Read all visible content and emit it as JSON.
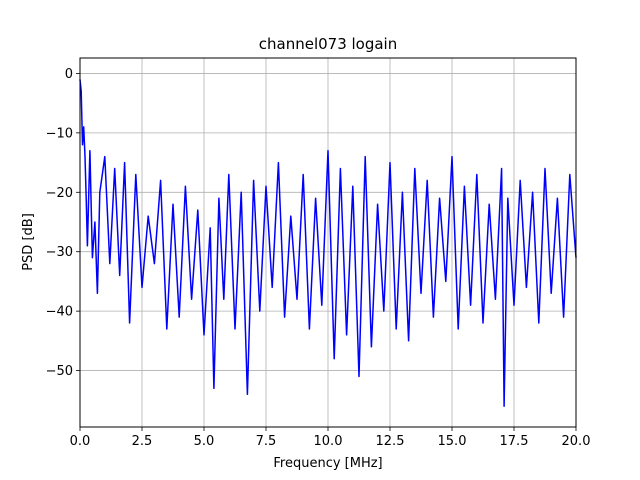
{
  "chart_data": {
    "type": "line",
    "title": "channel073 logain",
    "xlabel": "Frequency [MHz]",
    "ylabel": "PSD [dB]",
    "xlim": [
      0,
      20
    ],
    "ylim": [
      -59.5,
      2.6
    ],
    "grid": true,
    "x_ticks": [
      0,
      2.5,
      5,
      7.5,
      10,
      12.5,
      15,
      17.5,
      20
    ],
    "x_tick_labels": [
      "0.0",
      "2.5",
      "5.0",
      "7.5",
      "10.0",
      "12.5",
      "15.0",
      "17.5",
      "20.0"
    ],
    "y_ticks": [
      0,
      -10,
      -20,
      -30,
      -40,
      -50
    ],
    "y_tick_labels": [
      "0",
      "−10",
      "−20",
      "−30",
      "−40",
      "−50"
    ],
    "series": [
      {
        "color": "#0000ff",
        "x": [
          0.0,
          0.05,
          0.1,
          0.15,
          0.2,
          0.25,
          0.3,
          0.4,
          0.5,
          0.6,
          0.7,
          0.8,
          1.0,
          1.2,
          1.4,
          1.6,
          1.8,
          2.0,
          2.25,
          2.5,
          2.75,
          3.0,
          3.25,
          3.5,
          3.75,
          4.0,
          4.25,
          4.5,
          4.75,
          5.0,
          5.25,
          5.4,
          5.6,
          5.8,
          6.0,
          6.25,
          6.5,
          6.75,
          7.0,
          7.25,
          7.5,
          7.75,
          8.0,
          8.25,
          8.5,
          8.75,
          9.0,
          9.25,
          9.5,
          9.75,
          10.0,
          10.25,
          10.5,
          10.75,
          11.0,
          11.25,
          11.5,
          11.75,
          12.0,
          12.25,
          12.5,
          12.75,
          13.0,
          13.25,
          13.5,
          13.75,
          14.0,
          14.25,
          14.5,
          14.75,
          15.0,
          15.25,
          15.5,
          15.75,
          16.0,
          16.25,
          16.5,
          16.75,
          17.0,
          17.1,
          17.25,
          17.5,
          17.75,
          18.0,
          18.25,
          18.5,
          18.75,
          19.0,
          19.25,
          19.5,
          19.75,
          20.0
        ],
        "y": [
          -1,
          -3,
          -12,
          -9,
          -14,
          -21,
          -29,
          -13,
          -31,
          -25,
          -37,
          -20,
          -14,
          -32,
          -16,
          -34,
          -15,
          -42,
          -17,
          -36,
          -24,
          -32,
          -18,
          -43,
          -22,
          -41,
          -19,
          -38,
          -23,
          -44,
          -26,
          -53,
          -21,
          -38,
          -17,
          -43,
          -20,
          -54,
          -18,
          -40,
          -19,
          -36,
          -15,
          -41,
          -24,
          -38,
          -17,
          -43,
          -21,
          -39,
          -13,
          -48,
          -16,
          -44,
          -19,
          -51,
          -14,
          -46,
          -22,
          -40,
          -15,
          -43,
          -20,
          -45,
          -16,
          -37,
          -18,
          -41,
          -21,
          -35,
          -14,
          -43,
          -19,
          -39,
          -17,
          -42,
          -22,
          -38,
          -16,
          -56,
          -21,
          -39,
          -18,
          -36,
          -20,
          -42,
          -16,
          -37,
          -21,
          -41,
          -17,
          -31
        ]
      }
    ]
  }
}
